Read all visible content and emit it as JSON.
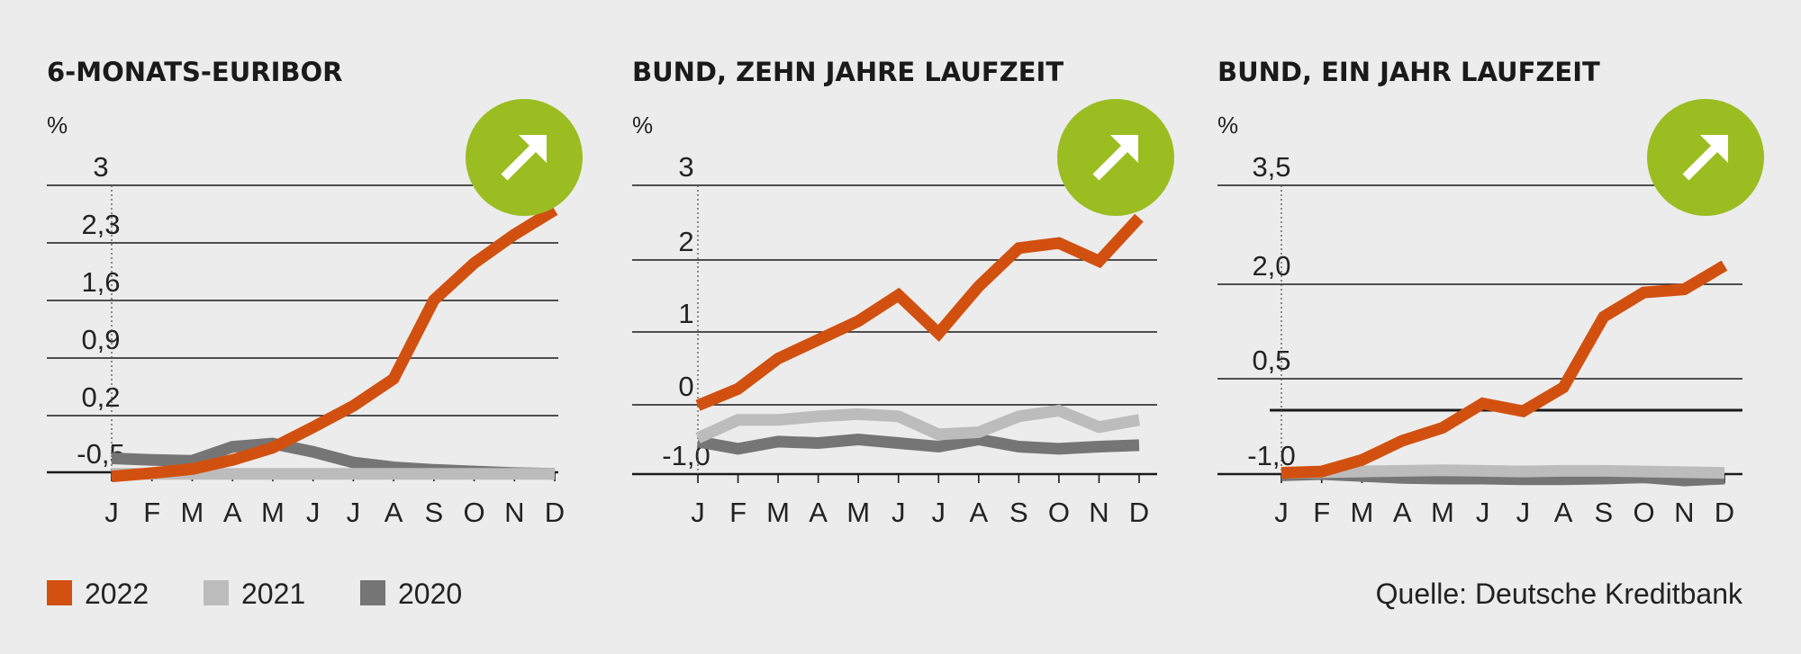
{
  "legend": [
    {
      "label": "2022",
      "color": "#d2500f"
    },
    {
      "label": "2021",
      "color": "#bcbcbc"
    },
    {
      "label": "2020",
      "color": "#757575"
    }
  ],
  "source": "Quelle: Deutsche Kreditbank",
  "trend_badge": {
    "color": "#9bbd22",
    "icon": "arrow-up-right-icon"
  },
  "chart_data": [
    {
      "type": "line",
      "title": "6-MONATS-EURIBOR",
      "ylabel": "%",
      "yticks": [
        "3",
        "2,3",
        "1,6",
        "0,9",
        "0,2",
        "-0,5"
      ],
      "ylim": [
        -0.5,
        3.0
      ],
      "categories": [
        "J",
        "F",
        "M",
        "A",
        "M",
        "J",
        "J",
        "A",
        "S",
        "O",
        "N",
        "D"
      ],
      "series": [
        {
          "name": "2022",
          "values": [
            -0.55,
            -0.51,
            -0.46,
            -0.35,
            -0.2,
            0.05,
            0.31,
            0.64,
            1.6,
            2.05,
            2.4,
            2.7
          ]
        },
        {
          "name": "2021",
          "values": [
            -0.52,
            -0.52,
            -0.52,
            -0.52,
            -0.52,
            -0.52,
            -0.52,
            -0.52,
            -0.52,
            -0.52,
            -0.52,
            -0.52
          ]
        },
        {
          "name": "2020",
          "values": [
            -0.33,
            -0.35,
            -0.36,
            -0.19,
            -0.15,
            -0.25,
            -0.38,
            -0.44,
            -0.47,
            -0.49,
            -0.51,
            -0.52
          ]
        }
      ]
    },
    {
      "type": "line",
      "title": "BUND, ZEHN JAHRE LAUFZEIT",
      "ylabel": "%",
      "yticks": [
        "3",
        "2",
        "1",
        "0",
        "-1,0"
      ],
      "ylim": [
        -1.0,
        3.0
      ],
      "categories": [
        "J",
        "F",
        "M",
        "A",
        "M",
        "J",
        "J",
        "A",
        "S",
        "O",
        "N",
        "D"
      ],
      "series": [
        {
          "name": "2022",
          "values": [
            -0.05,
            0.18,
            0.6,
            0.86,
            1.12,
            1.48,
            0.95,
            1.6,
            2.13,
            2.2,
            1.95,
            2.55
          ]
        },
        {
          "name": "2021",
          "values": [
            -0.5,
            -0.25,
            -0.25,
            -0.2,
            -0.17,
            -0.2,
            -0.45,
            -0.42,
            -0.2,
            -0.12,
            -0.35,
            -0.25
          ]
        },
        {
          "name": "2020",
          "values": [
            -0.55,
            -0.65,
            -0.55,
            -0.57,
            -0.52,
            -0.57,
            -0.62,
            -0.52,
            -0.62,
            -0.65,
            -0.62,
            -0.6
          ]
        }
      ]
    },
    {
      "type": "line",
      "title": "BUND, EIN JAHR LAUFZEIT",
      "ylabel": "%",
      "yticks": [
        "3,5",
        "2,0",
        "0,5",
        "-1,0"
      ],
      "ylim": [
        -1.0,
        3.5
      ],
      "categories": [
        "J",
        "F",
        "M",
        "A",
        "M",
        "J",
        "J",
        "A",
        "S",
        "O",
        "N",
        "D"
      ],
      "series": [
        {
          "name": "2022",
          "values": [
            -0.98,
            -0.96,
            -0.78,
            -0.48,
            -0.28,
            0.1,
            -0.02,
            0.35,
            1.45,
            1.83,
            1.88,
            2.25
          ]
        },
        {
          "name": "2021",
          "values": [
            -0.98,
            -0.97,
            -0.96,
            -0.95,
            -0.94,
            -0.95,
            -0.96,
            -0.95,
            -0.95,
            -0.96,
            -0.97,
            -0.98
          ]
        },
        {
          "name": "2020",
          "values": [
            -1.02,
            -1.0,
            -1.03,
            -1.06,
            -1.07,
            -1.07,
            -1.08,
            -1.08,
            -1.07,
            -1.05,
            -1.1,
            -1.07
          ]
        }
      ]
    }
  ]
}
